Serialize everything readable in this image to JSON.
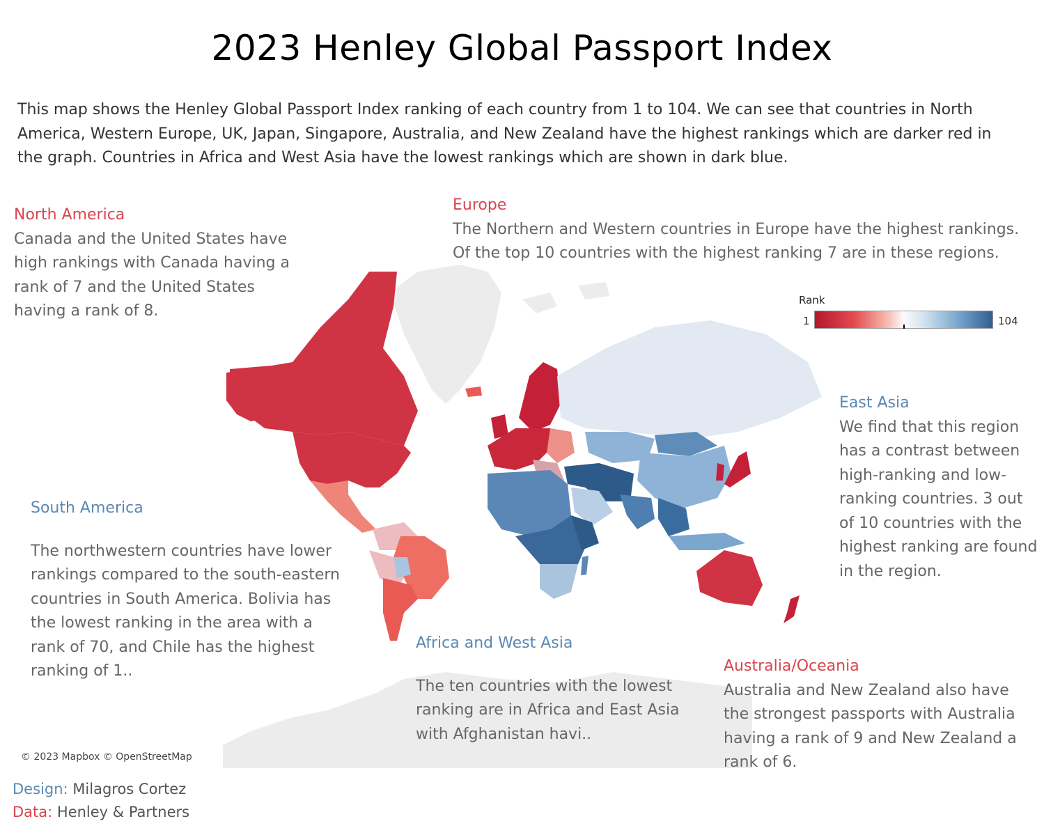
{
  "title": "2023 Henley Global Passport Index",
  "description": "This map shows the Henley Global Passport Index ranking of each country from 1 to 104. We can see that countries in North America, Western Europe, UK, Japan, Singapore, Australia, and New Zealand have the highest rankings which are darker red in the graph. Countries in Africa and West Asia have the lowest rankings which are shown in dark blue.",
  "legend": {
    "title": "Rank",
    "min": "1",
    "max": "104"
  },
  "colors": {
    "high_rank": "#d03344",
    "low_rank": "#3d6d9e",
    "mid": "#e2e9f2",
    "no_data": "#ececec"
  },
  "annotations": {
    "north_america": {
      "heading": "North America",
      "body": "Canada and the United States have high rankings with Canada having a rank of 7 and the United States having a rank of 8."
    },
    "europe": {
      "heading": "Europe",
      "body": "The Northern and Western countries in Europe have the highest rankings. Of the top 10 countries with the highest ranking 7 are in these regions."
    },
    "east_asia": {
      "heading": "East Asia",
      "body": "We find that this region has a contrast between high-ranking and low-ranking countries. 3 out of 10 countries with the highest ranking are found in the region."
    },
    "south_america": {
      "heading": "South America",
      "body": "The northwestern countries have lower rankings compared to the south-eastern countries in South America. Bolivia has the lowest ranking in the area with a rank of 70, and Chile has the highest ranking of 1.."
    },
    "africa_west_asia": {
      "heading": "Africa and West Asia",
      "body": "The ten countries with the lowest ranking are in Africa and East Asia with Afghanistan havi.."
    },
    "oceania": {
      "heading": "Australia/Oceania",
      "body": "Australia and New Zealand also have the strongest passports with Australia having a rank of 9 and New Zealand a rank of 6."
    }
  },
  "attribution": "© 2023 Mapbox © OpenStreetMap",
  "credits": {
    "design_label": "Design:",
    "design_value": "Milagros Cortez",
    "data_label": "Data:",
    "data_value": "Henley & Partners"
  }
}
